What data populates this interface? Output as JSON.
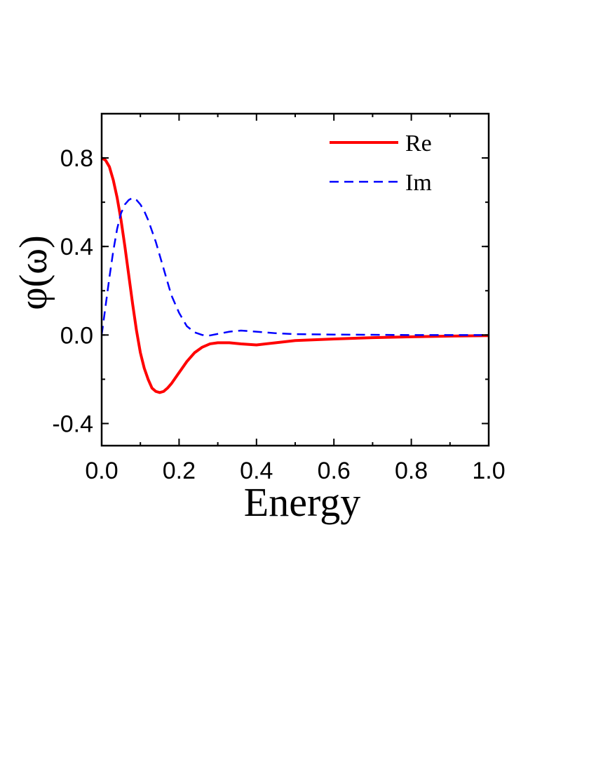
{
  "chart_data": {
    "type": "line",
    "xlabel": "Energy",
    "ylabel": "φ(ω)",
    "xlim": [
      0.0,
      1.0
    ],
    "ylim": [
      -0.5,
      1.0
    ],
    "x_ticks": [
      0.0,
      0.2,
      0.4,
      0.6,
      0.8,
      1.0
    ],
    "x_tick_labels": [
      "0.0",
      "0.2",
      "0.4",
      "0.6",
      "0.8",
      "1.0"
    ],
    "y_ticks": [
      -0.4,
      0.0,
      0.4,
      0.8
    ],
    "y_tick_labels": [
      "-0.4",
      "0.0",
      "0.4",
      "0.8"
    ],
    "grid": false,
    "legend_position": "top-right",
    "series": [
      {
        "name": "Re",
        "color": "#ff0000",
        "style": "solid",
        "x": [
          0.0,
          0.01,
          0.02,
          0.03,
          0.04,
          0.05,
          0.06,
          0.07,
          0.08,
          0.09,
          0.1,
          0.11,
          0.12,
          0.13,
          0.14,
          0.15,
          0.16,
          0.17,
          0.18,
          0.2,
          0.22,
          0.24,
          0.26,
          0.28,
          0.3,
          0.33,
          0.36,
          0.4,
          0.45,
          0.5,
          0.6,
          0.7,
          0.8,
          0.9,
          1.0
        ],
        "y": [
          0.8,
          0.79,
          0.76,
          0.7,
          0.62,
          0.52,
          0.4,
          0.27,
          0.14,
          0.02,
          -0.08,
          -0.15,
          -0.2,
          -0.24,
          -0.255,
          -0.26,
          -0.255,
          -0.24,
          -0.22,
          -0.17,
          -0.12,
          -0.08,
          -0.055,
          -0.04,
          -0.035,
          -0.035,
          -0.04,
          -0.045,
          -0.035,
          -0.025,
          -0.018,
          -0.012,
          -0.008,
          -0.005,
          -0.003
        ]
      },
      {
        "name": "Im",
        "color": "#0000ff",
        "style": "dashed",
        "x": [
          0.0,
          0.01,
          0.02,
          0.03,
          0.04,
          0.05,
          0.06,
          0.07,
          0.08,
          0.09,
          0.1,
          0.11,
          0.12,
          0.13,
          0.14,
          0.15,
          0.16,
          0.17,
          0.18,
          0.2,
          0.22,
          0.24,
          0.26,
          0.28,
          0.3,
          0.33,
          0.36,
          0.4,
          0.45,
          0.5,
          0.6,
          0.7,
          0.8,
          0.9,
          1.0
        ],
        "y": [
          0.0,
          0.13,
          0.26,
          0.38,
          0.48,
          0.55,
          0.59,
          0.61,
          0.62,
          0.61,
          0.59,
          0.56,
          0.52,
          0.47,
          0.42,
          0.36,
          0.3,
          0.24,
          0.18,
          0.1,
          0.04,
          0.012,
          0.0,
          -0.002,
          0.005,
          0.015,
          0.02,
          0.015,
          0.008,
          0.004,
          0.002,
          0.001,
          0.0,
          0.0,
          0.0
        ]
      }
    ]
  }
}
